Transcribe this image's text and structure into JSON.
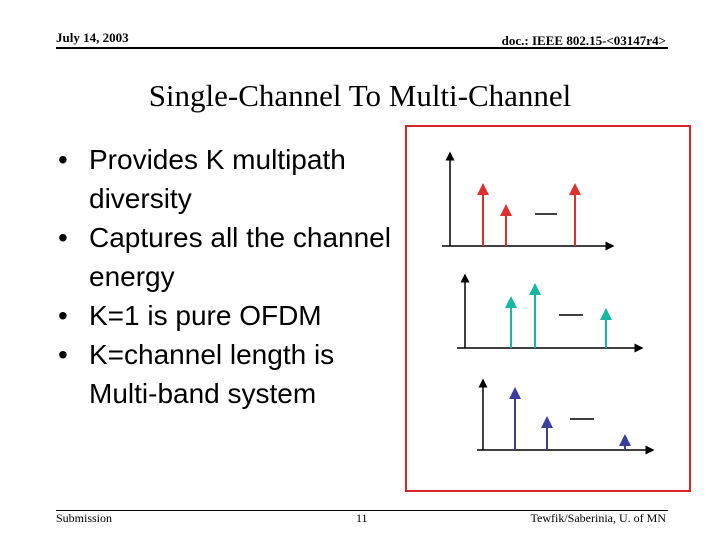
{
  "header": {
    "date": "July 14, 2003",
    "doc_id": "doc.: IEEE 802.15-<03147r4>"
  },
  "title": "Single-Channel To Multi-Channel",
  "bullets": [
    "Provides K multipath diversity",
    "Captures all the channel energy",
    "K=1 is pure OFDM",
    "K=channel length is Multi-band system"
  ],
  "bullet_symbol": "•",
  "colors": {
    "frame": "#d9252a",
    "plot1": "#e0302c",
    "plot2": "#17b5a3",
    "plot3": "#3a3e9c",
    "axis": "#000000"
  },
  "footer": {
    "left": "Submission",
    "page": "11",
    "right": "Tewfik/Saberinia, U. of MN"
  }
}
